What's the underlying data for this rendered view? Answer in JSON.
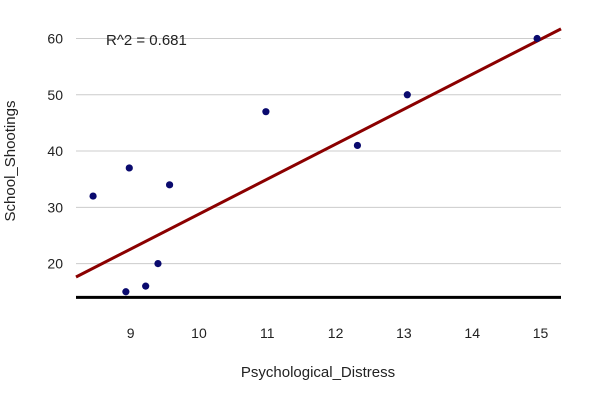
{
  "chart_data": {
    "type": "scatter",
    "title": "",
    "xlabel": "Psychological_Distress",
    "ylabel": "School_Shootings",
    "xlim": [
      8.2,
      15.3
    ],
    "ylim": [
      13,
      64
    ],
    "x_ticks": [
      9,
      10,
      11,
      12,
      13,
      14,
      15
    ],
    "y_ticks": [
      20,
      30,
      40,
      50,
      60
    ],
    "y_gridlines": true,
    "baseline_y": 14,
    "annotation": "R^2 =  0.681",
    "points": [
      {
        "x": 8.45,
        "y": 32
      },
      {
        "x": 8.93,
        "y": 15
      },
      {
        "x": 8.98,
        "y": 37
      },
      {
        "x": 9.22,
        "y": 16
      },
      {
        "x": 9.4,
        "y": 20
      },
      {
        "x": 9.57,
        "y": 34
      },
      {
        "x": 10.98,
        "y": 47
      },
      {
        "x": 12.32,
        "y": 41
      },
      {
        "x": 13.05,
        "y": 50
      },
      {
        "x": 14.95,
        "y": 60
      }
    ],
    "trendline": {
      "slope": 6.21,
      "intercept": -33.3
    },
    "colors": {
      "points": "#0a0a6e",
      "trendline": "#8b0000",
      "grid": "#cccccc",
      "baseline": "#000000"
    }
  }
}
